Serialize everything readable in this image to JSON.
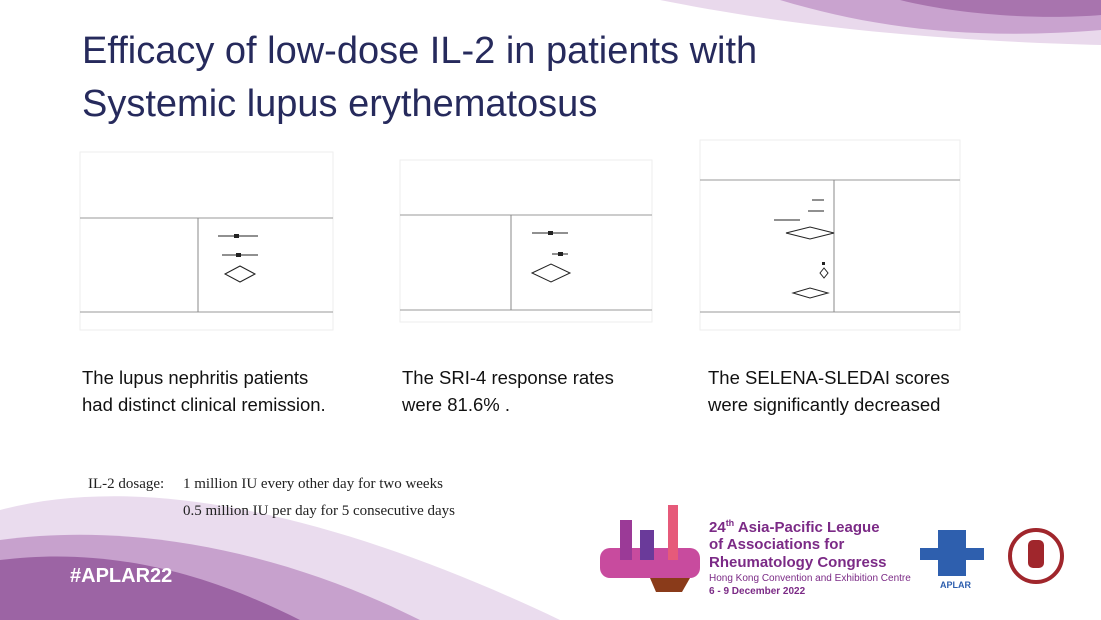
{
  "title": [
    "Efficacy of low-dose IL-2 in patients with",
    "Systemic lupus erythematosus"
  ],
  "panels": [
    {
      "caption": [
        "The lupus nephritis patients",
        "had distinct clinical remission."
      ]
    },
    {
      "caption": [
        "The SRI-4 response rates",
        "were 81.6% ."
      ]
    },
    {
      "caption": [
        "The SELENA-SLEDAI scores",
        "were significantly decreased"
      ]
    }
  ],
  "dosage": {
    "label": "IL-2 dosage:",
    "lines": [
      "1 million IU every other day for two weeks",
      "0.5 million IU per day for 5 consecutive days"
    ]
  },
  "hashtag": "#APLAR22",
  "congress": {
    "edition": "24",
    "edition_suffix": "th",
    "lines": [
      "Asia-Pacific League",
      "of Associations for",
      "Rheumatology Congress"
    ],
    "venue": "Hong Kong Convention and Exhibition Centre",
    "dates": "6 - 9 December 2022"
  },
  "logo_text": "APLAR"
}
